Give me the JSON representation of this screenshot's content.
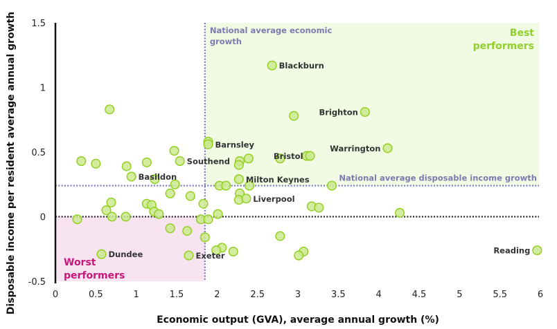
{
  "chart_data": {
    "type": "scatter",
    "title": "",
    "xlabel": "Economic output (GVA), average annual growth (%)",
    "ylabel": "Disposable income per resident average annual growth",
    "xlim": [
      0,
      6
    ],
    "ylim": [
      -0.5,
      1.5
    ],
    "x_ticks": [
      "0",
      "0.5",
      "1",
      "1.5",
      "2",
      "2.5",
      "3",
      "3.5",
      "4",
      "4.5",
      "5",
      "5.5",
      "6"
    ],
    "x_tick_values": [
      0,
      0.5,
      1,
      1.5,
      2,
      2.5,
      3,
      3.5,
      4,
      4.5,
      5,
      5.5,
      6
    ],
    "y_ticks": [
      "-0.5",
      "0",
      "0.5",
      "1",
      "1.5"
    ],
    "y_tick_values": [
      -0.5,
      0,
      0.5,
      1,
      1.5
    ],
    "grid": false,
    "reference_lines": {
      "national_avg_economic_growth": {
        "x": 1.85,
        "label": "National average economic growth"
      },
      "national_avg_disposable_income_growth": {
        "y": 0.24,
        "label": "National average disposable income growth"
      },
      "zero_line": {
        "y": 0
      }
    },
    "regions": {
      "best": {
        "label_line1": "Best",
        "label_line2": "performers",
        "color": "#f1fae3"
      },
      "worst": {
        "label_line1": "Worst",
        "label_line2": "performers",
        "color": "#f7e4f0"
      }
    },
    "colors": {
      "point_fill": "#cbe98f",
      "point_stroke": "#93cf22",
      "best_text": "#8fd12a",
      "worst_text": "#c8177a",
      "reference_line": "#7a78c2",
      "zero_line": "#222222"
    },
    "points": [
      {
        "x": 0.67,
        "y": 0.83,
        "label": ""
      },
      {
        "x": 0.32,
        "y": 0.43,
        "label": ""
      },
      {
        "x": 0.5,
        "y": 0.41,
        "label": ""
      },
      {
        "x": 0.88,
        "y": 0.39,
        "label": ""
      },
      {
        "x": 1.13,
        "y": 0.42,
        "label": ""
      },
      {
        "x": 1.47,
        "y": 0.51,
        "label": ""
      },
      {
        "x": 1.54,
        "y": 0.43,
        "label": "Southend"
      },
      {
        "x": 0.94,
        "y": 0.31,
        "label": "Basildon"
      },
      {
        "x": 1.23,
        "y": 0.29,
        "label": ""
      },
      {
        "x": 1.48,
        "y": 0.25,
        "label": ""
      },
      {
        "x": 1.42,
        "y": 0.18,
        "label": ""
      },
      {
        "x": 1.67,
        "y": 0.16,
        "label": ""
      },
      {
        "x": 0.69,
        "y": 0.11,
        "label": ""
      },
      {
        "x": 0.63,
        "y": 0.05,
        "label": ""
      },
      {
        "x": 0.7,
        "y": 0.0,
        "label": ""
      },
      {
        "x": 1.13,
        "y": 0.1,
        "label": ""
      },
      {
        "x": 1.19,
        "y": 0.09,
        "label": ""
      },
      {
        "x": 1.22,
        "y": 0.04,
        "label": ""
      },
      {
        "x": 1.28,
        "y": 0.02,
        "label": ""
      },
      {
        "x": 0.27,
        "y": -0.02,
        "label": ""
      },
      {
        "x": 0.87,
        "y": 0.0,
        "label": ""
      },
      {
        "x": 1.42,
        "y": -0.09,
        "label": ""
      },
      {
        "x": 1.63,
        "y": -0.11,
        "label": ""
      },
      {
        "x": 0.57,
        "y": -0.29,
        "label": "Dundee"
      },
      {
        "x": 1.65,
        "y": -0.3,
        "label": "Exeter"
      },
      {
        "x": 1.83,
        "y": 0.1,
        "label": ""
      },
      {
        "x": 1.8,
        "y": -0.02,
        "label": ""
      },
      {
        "x": 1.89,
        "y": -0.02,
        "label": ""
      },
      {
        "x": 1.85,
        "y": -0.16,
        "label": ""
      },
      {
        "x": 1.89,
        "y": 0.58,
        "label": ""
      },
      {
        "x": 1.89,
        "y": 0.56,
        "label": "Barnsley"
      },
      {
        "x": 2.28,
        "y": 0.43,
        "label": ""
      },
      {
        "x": 2.27,
        "y": 0.4,
        "label": ""
      },
      {
        "x": 2.39,
        "y": 0.45,
        "label": ""
      },
      {
        "x": 2.27,
        "y": 0.29,
        "label": "Milton Keynes"
      },
      {
        "x": 2.03,
        "y": 0.24,
        "label": ""
      },
      {
        "x": 2.11,
        "y": 0.24,
        "label": ""
      },
      {
        "x": 2.4,
        "y": 0.24,
        "label": ""
      },
      {
        "x": 2.28,
        "y": 0.18,
        "label": ""
      },
      {
        "x": 2.27,
        "y": 0.13,
        "label": ""
      },
      {
        "x": 2.36,
        "y": 0.14,
        "label": "Liverpool"
      },
      {
        "x": 2.01,
        "y": 0.02,
        "label": ""
      },
      {
        "x": 2.06,
        "y": -0.24,
        "label": ""
      },
      {
        "x": 1.99,
        "y": -0.26,
        "label": ""
      },
      {
        "x": 2.2,
        "y": -0.27,
        "label": ""
      },
      {
        "x": 2.68,
        "y": 1.17,
        "label": "Blackburn"
      },
      {
        "x": 2.95,
        "y": 0.78,
        "label": ""
      },
      {
        "x": 3.83,
        "y": 0.81,
        "label": "Brighton"
      },
      {
        "x": 2.78,
        "y": 0.45,
        "label": ""
      },
      {
        "x": 3.11,
        "y": 0.47,
        "label": ""
      },
      {
        "x": 3.15,
        "y": 0.47,
        "label": "Bristol"
      },
      {
        "x": 4.11,
        "y": 0.53,
        "label": "Warrington"
      },
      {
        "x": 3.42,
        "y": 0.24,
        "label": ""
      },
      {
        "x": 3.17,
        "y": 0.08,
        "label": ""
      },
      {
        "x": 3.26,
        "y": 0.07,
        "label": ""
      },
      {
        "x": 4.26,
        "y": 0.03,
        "label": ""
      },
      {
        "x": 2.78,
        "y": -0.15,
        "label": ""
      },
      {
        "x": 3.07,
        "y": -0.27,
        "label": ""
      },
      {
        "x": 3.01,
        "y": -0.3,
        "label": ""
      },
      {
        "x": 5.96,
        "y": -0.26,
        "label": "Reading"
      }
    ]
  }
}
